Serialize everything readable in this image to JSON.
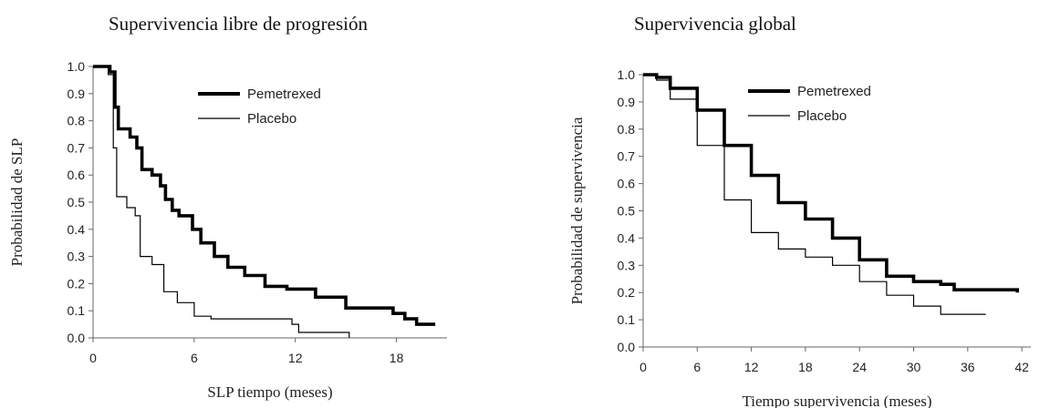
{
  "chart_data": [
    {
      "type": "line",
      "title": "Supervivencia libre de progresión",
      "xlabel": "SLP tiempo (meses)",
      "ylabel": "Probabilidad de SLP",
      "xlim": [
        0,
        21
      ],
      "ylim": [
        0,
        1
      ],
      "xticks": [
        0,
        6,
        12,
        18
      ],
      "yticks": [
        0.0,
        0.1,
        0.2,
        0.3,
        0.4,
        0.5,
        0.6,
        0.7,
        0.8,
        0.9,
        1.0
      ],
      "grid": false,
      "legend_position": "top-right",
      "series": [
        {
          "name": "Pemetrexed",
          "line": "thick",
          "x": [
            0,
            1.0,
            1.3,
            1.5,
            2.2,
            2.6,
            2.9,
            3.5,
            4.0,
            4.3,
            4.7,
            5.1,
            5.9,
            6.4,
            7.2,
            8.0,
            9.0,
            10.2,
            11.5,
            13.2,
            15.0,
            17.8,
            18.5,
            19.2,
            20.3
          ],
          "y": [
            1.0,
            0.98,
            0.85,
            0.77,
            0.74,
            0.7,
            0.62,
            0.6,
            0.56,
            0.51,
            0.47,
            0.45,
            0.4,
            0.35,
            0.3,
            0.26,
            0.23,
            0.19,
            0.18,
            0.15,
            0.11,
            0.09,
            0.07,
            0.05,
            0.05
          ]
        },
        {
          "name": "Placebo",
          "line": "thin",
          "x": [
            0,
            0.9,
            1.2,
            1.4,
            2.0,
            2.5,
            2.8,
            3.5,
            4.2,
            5.0,
            6.0,
            7.0,
            9.5,
            11.8,
            12.2,
            15.2
          ],
          "y": [
            1.0,
            0.97,
            0.7,
            0.52,
            0.48,
            0.45,
            0.3,
            0.27,
            0.17,
            0.13,
            0.08,
            0.07,
            0.07,
            0.05,
            0.02,
            0.0
          ]
        }
      ]
    },
    {
      "type": "line",
      "title": "Supervivencia global",
      "xlabel": "Tiempo supervivencia (meses)",
      "ylabel": "Probabilidad de supervivencia",
      "xlim": [
        0,
        43
      ],
      "ylim": [
        0,
        1
      ],
      "xticks": [
        0,
        6,
        12,
        18,
        24,
        30,
        36,
        42
      ],
      "yticks": [
        0.0,
        0.1,
        0.2,
        0.3,
        0.4,
        0.5,
        0.6,
        0.7,
        0.8,
        0.9,
        1.0
      ],
      "grid": false,
      "legend_position": "top-right",
      "series": [
        {
          "name": "Pemetrexed",
          "line": "thick",
          "x": [
            0,
            1.5,
            3,
            6,
            9,
            12,
            15,
            18,
            21,
            24,
            27,
            30,
            33,
            34.5,
            41.5
          ],
          "y": [
            1.0,
            0.99,
            0.95,
            0.87,
            0.74,
            0.63,
            0.53,
            0.47,
            0.4,
            0.32,
            0.26,
            0.24,
            0.23,
            0.21,
            0.2
          ]
        },
        {
          "name": "Placebo",
          "line": "thin",
          "x": [
            0,
            1.5,
            3,
            6,
            9,
            12,
            15,
            18,
            21,
            24,
            27,
            30,
            33,
            38
          ],
          "y": [
            1.0,
            0.98,
            0.91,
            0.74,
            0.54,
            0.42,
            0.36,
            0.33,
            0.3,
            0.24,
            0.19,
            0.15,
            0.12,
            0.12
          ]
        }
      ]
    }
  ]
}
